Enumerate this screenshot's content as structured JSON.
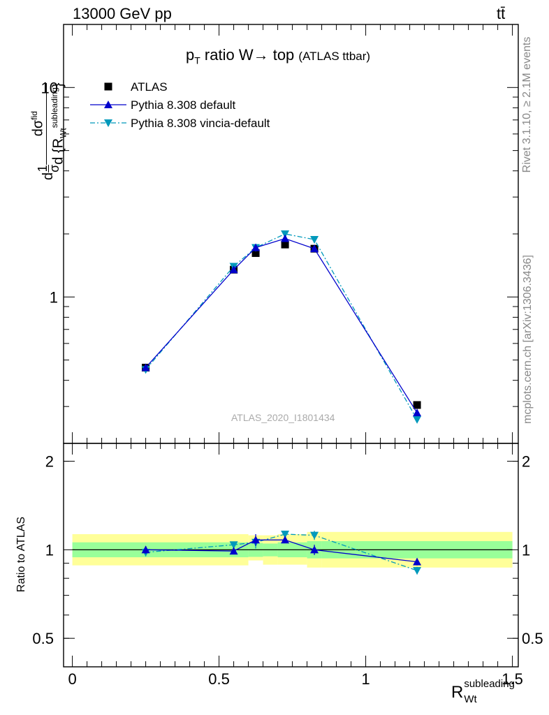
{
  "header": {
    "energy_label": "13000 GeV pp",
    "process_label": "tt̄"
  },
  "side_labels": {
    "rivet": "Rivet 3.1.10, ≥ 2.1M events",
    "mcplots": "mcplots.cern.ch [arXiv:1306.3436]"
  },
  "main_title": {
    "p": "p",
    "sub": "T",
    "text": " ratio W→ top",
    "small": "(ATLAS ttbar)"
  },
  "watermark": "ATLAS_2020_I1801434",
  "y_label": {
    "part1": "d",
    "part2": "1",
    "part3": "σ",
    "part4": "dσ",
    "part5": "fid",
    "part6": "d {R",
    "part7": "subleading",
    "part8": "Wt",
    "part9": "}"
  },
  "x_label": {
    "main": "R",
    "sup": "subleading",
    "sub": "Wt"
  },
  "ratio_ylabel": "Ratio to ATLAS",
  "legend": [
    {
      "label": "ATLAS"
    },
    {
      "label": "Pythia 8.308 default"
    },
    {
      "label": "Pythia 8.308 vincia-default"
    }
  ],
  "colors": {
    "atlas": "#000000",
    "default": "#0000cc",
    "vincia": "#0099bb",
    "band_inner": "#99ff99",
    "band_outer": "#ffff99"
  },
  "chart_data": [
    {
      "type": "line",
      "title": "pT ratio W→ top (ATLAS ttbar)",
      "xlabel": "R_Wt^subleading",
      "ylabel": "1/σ dσ^fid / d{R_Wt^subleading}",
      "xlim": [
        -0.03,
        1.52
      ],
      "ylim": [
        0.2,
        20
      ],
      "log_y": true,
      "x_ticks": [
        "0",
        "0.5",
        "1",
        "1.5"
      ],
      "y_ticks": [
        "1",
        "10"
      ],
      "legend_position": "top-left",
      "bins": [
        {
          "lo": 0.0,
          "hi": 0.6,
          "x": 0.25
        },
        {
          "lo": 0.6,
          "hi": 0.65,
          "x": 0.55
        },
        {
          "lo": 0.65,
          "hi": 0.7,
          "x": 0.625
        },
        {
          "lo": 0.7,
          "hi": 0.8,
          "x": 0.725
        },
        {
          "lo": 0.8,
          "hi": 0.85,
          "x": 0.825
        },
        {
          "lo": 0.85,
          "hi": 1.5,
          "x": 1.175
        }
      ],
      "series": [
        {
          "name": "ATLAS",
          "x": [
            0.25,
            0.55,
            0.625,
            0.725,
            0.825,
            1.175
          ],
          "values": [
            0.46,
            1.35,
            1.62,
            1.78,
            1.7,
            0.305
          ]
        },
        {
          "name": "Pythia 8.308 default",
          "x": [
            0.25,
            0.55,
            0.625,
            0.725,
            0.825,
            1.175
          ],
          "values": [
            0.46,
            1.35,
            1.72,
            1.9,
            1.7,
            0.28
          ],
          "errors": [
            0.01,
            0.03,
            0.07,
            0.04,
            0.04,
            0.008
          ]
        },
        {
          "name": "Pythia 8.308 vincia-default",
          "x": [
            0.25,
            0.55,
            0.625,
            0.725,
            0.825,
            1.175
          ],
          "values": [
            0.45,
            1.4,
            1.72,
            2.0,
            1.88,
            0.26
          ],
          "errors": [
            0.01,
            0.03,
            0.07,
            0.04,
            0.04,
            0.008
          ]
        }
      ]
    },
    {
      "type": "line",
      "ylabel": "Ratio to ATLAS",
      "xlim": [
        -0.03,
        1.52
      ],
      "ylim": [
        0.4,
        2.3
      ],
      "log_y": true,
      "y_ticks": [
        "0.5",
        "1",
        "2"
      ],
      "band_inner": [
        {
          "lo": 0.0,
          "hi": 0.6,
          "down": 0.943,
          "up": 1.06
        },
        {
          "lo": 0.6,
          "hi": 0.65,
          "down": 0.946,
          "up": 1.055
        },
        {
          "lo": 0.65,
          "hi": 0.7,
          "down": 0.95,
          "up": 1.05
        },
        {
          "lo": 0.7,
          "hi": 0.8,
          "down": 0.943,
          "up": 1.06
        },
        {
          "lo": 0.8,
          "hi": 0.85,
          "down": 0.935,
          "up": 1.07
        },
        {
          "lo": 0.85,
          "hi": 1.5,
          "down": 0.935,
          "up": 1.07
        }
      ],
      "band_outer": [
        {
          "lo": 0.0,
          "hi": 0.6,
          "down": 0.885,
          "up": 1.13
        },
        {
          "lo": 0.6,
          "hi": 0.65,
          "down": 0.92,
          "up": 1.12
        },
        {
          "lo": 0.65,
          "hi": 0.7,
          "down": 0.89,
          "up": 1.12
        },
        {
          "lo": 0.7,
          "hi": 0.8,
          "down": 0.89,
          "up": 1.13
        },
        {
          "lo": 0.8,
          "hi": 0.85,
          "down": 0.87,
          "up": 1.15
        },
        {
          "lo": 0.85,
          "hi": 1.5,
          "down": 0.87,
          "up": 1.15
        }
      ],
      "series": [
        {
          "name": "Pythia 8.308 default",
          "x": [
            0.25,
            0.55,
            0.625,
            0.725,
            0.825,
            1.175
          ],
          "values": [
            1.0,
            0.99,
            1.08,
            1.08,
            1.0,
            0.91
          ],
          "errors": [
            0.03,
            0.025,
            0.05,
            0.02,
            0.04,
            0.025
          ]
        },
        {
          "name": "Pythia 8.308 vincia-default",
          "x": [
            0.25,
            0.55,
            0.625,
            0.725,
            0.825,
            1.175
          ],
          "values": [
            0.98,
            1.04,
            1.06,
            1.13,
            1.12,
            0.85
          ],
          "errors": [
            0.03,
            0.025,
            0.05,
            0.02,
            0.04,
            0.025
          ]
        }
      ]
    }
  ]
}
